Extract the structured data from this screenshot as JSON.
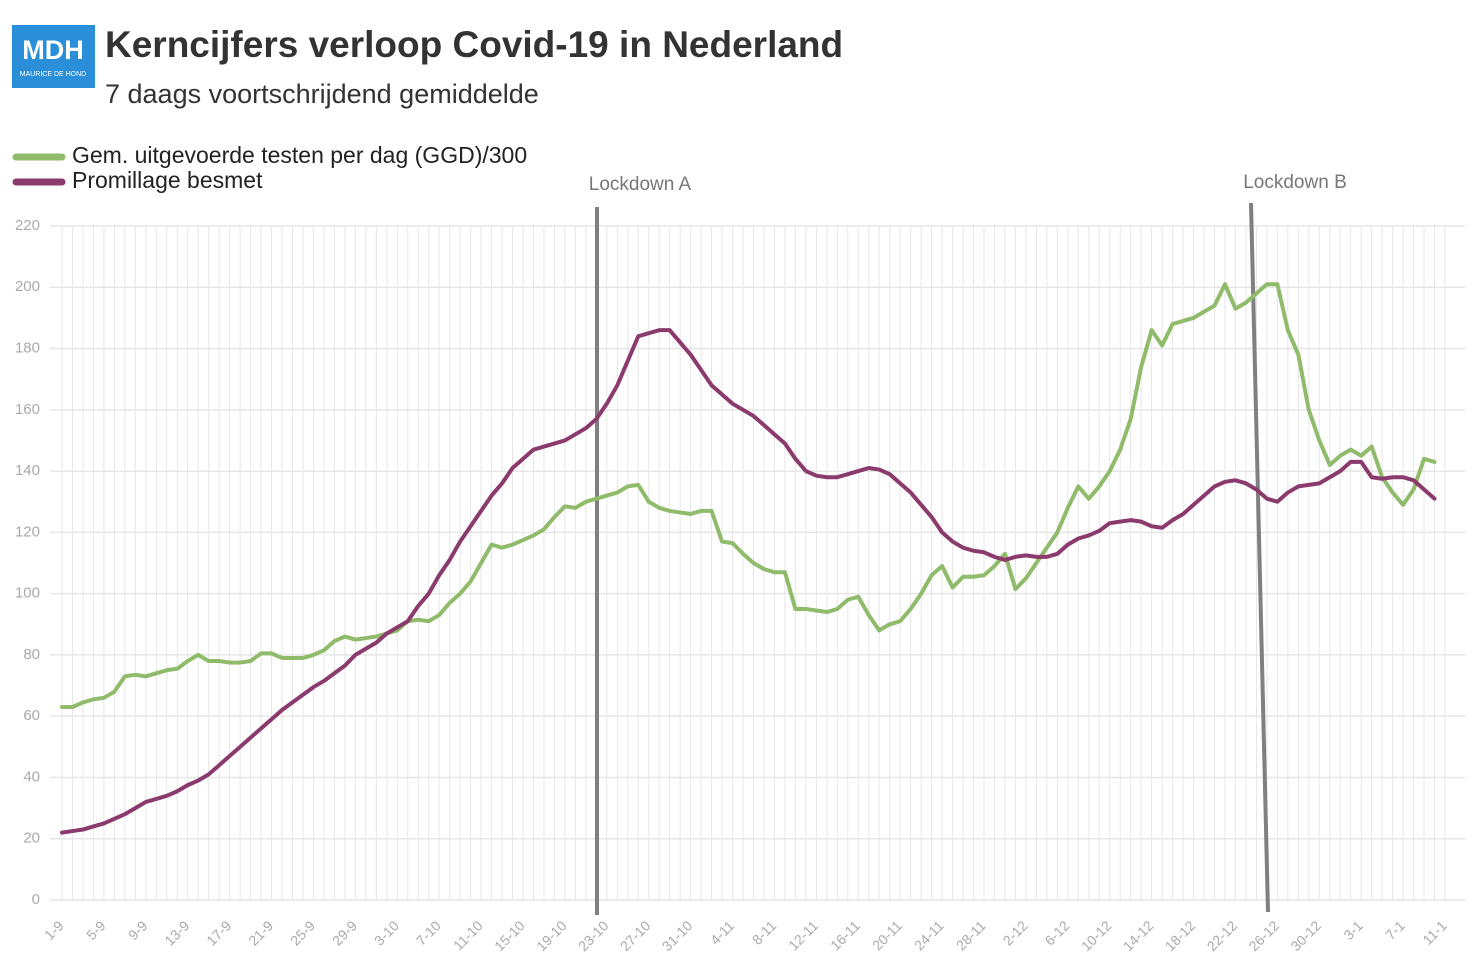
{
  "logo": {
    "text": "MDH",
    "subtext": "MAURICE DE HOND"
  },
  "chart_data": {
    "type": "line",
    "title": "Kerncijfers verloop Covid-19 in Nederland",
    "subtitle": "7 daags voortschrijdend gemiddelde",
    "annotations": [
      "Lockdown A",
      "Lockdown B"
    ],
    "categories": [
      "1-9",
      null,
      null,
      null,
      "5-9",
      null,
      null,
      null,
      "9-9",
      null,
      null,
      null,
      "13-9",
      null,
      null,
      null,
      "17-9",
      null,
      null,
      null,
      "21-9",
      null,
      null,
      null,
      "25-9",
      null,
      null,
      null,
      "29-9",
      null,
      null,
      null,
      "3-10",
      null,
      null,
      null,
      "7-10",
      null,
      null,
      null,
      "11-10",
      null,
      null,
      null,
      "15-10",
      null,
      null,
      null,
      "19-10",
      null,
      null,
      null,
      "23-10",
      null,
      null,
      null,
      "27-10",
      null,
      null,
      null,
      "31-10",
      null,
      null,
      null,
      "4-11",
      null,
      null,
      null,
      "8-11",
      null,
      null,
      null,
      "12-11",
      null,
      null,
      null,
      "16-11",
      null,
      null,
      null,
      "20-11",
      null,
      null,
      null,
      "24-11",
      null,
      null,
      null,
      "28-11",
      null,
      null,
      null,
      "2-12",
      null,
      null,
      null,
      "6-12",
      null,
      null,
      null,
      "10-12",
      null,
      null,
      null,
      "14-12",
      null,
      null,
      null,
      "18-12",
      null,
      null,
      null,
      "22-12",
      null,
      null,
      null,
      "26-12",
      null,
      null,
      null,
      "30-12",
      null,
      null,
      null,
      "3-1",
      null,
      null,
      null,
      "7-1",
      null,
      null,
      null,
      "11-1"
    ],
    "series": [
      {
        "name": "Gem. uitgevoerde testen per dag (GGD)/300",
        "color": "#8fbb6a",
        "values": [
          63,
          63,
          64.5,
          65.5,
          66,
          68,
          73,
          73.5,
          73,
          74,
          75,
          75.5,
          78,
          80,
          78,
          78,
          77.5,
          77.5,
          78,
          80.5,
          80.5,
          79,
          79,
          79,
          80,
          81.5,
          84.5,
          86,
          85,
          85.5,
          86,
          87,
          88,
          91,
          91.5,
          91,
          93,
          97,
          100,
          104,
          110,
          116,
          115,
          116,
          117.5,
          119,
          121,
          125,
          128.5,
          128,
          130,
          131,
          132,
          133,
          135,
          135.5,
          130,
          128,
          127,
          126.5,
          126,
          127,
          127,
          117,
          116.5,
          113,
          110,
          108,
          107,
          107,
          95,
          95,
          94.5,
          94,
          95,
          98,
          99,
          93,
          88,
          90,
          91,
          95,
          100,
          106,
          109,
          102,
          105.5,
          105.5,
          106,
          109,
          113,
          101.5,
          105,
          110,
          115,
          120,
          128,
          135,
          131,
          135,
          140,
          147,
          157,
          174,
          186,
          181,
          188,
          189,
          190,
          192,
          194,
          201,
          193,
          195,
          198,
          201,
          201,
          186,
          178,
          160,
          150,
          142,
          145,
          147,
          145,
          148,
          138,
          133,
          129,
          134,
          144,
          143,
          null
        ]
      },
      {
        "name": "Promillage besmet",
        "color": "#8b3a6e",
        "values": [
          22,
          22.5,
          23,
          24,
          25,
          26.5,
          28,
          30,
          32,
          33,
          34,
          35.5,
          37.5,
          39,
          41,
          44,
          47,
          50,
          53,
          56,
          59,
          62,
          64.5,
          67,
          69.5,
          71.5,
          74,
          76.5,
          80,
          82,
          84,
          87,
          89,
          91,
          96,
          100,
          106,
          111,
          117,
          122,
          127,
          132,
          136,
          141,
          144,
          147,
          148,
          149,
          150,
          152,
          154,
          157,
          162,
          168,
          176,
          184,
          185,
          186,
          186,
          182,
          178,
          173,
          168,
          165,
          162,
          160,
          158,
          155,
          152,
          149,
          144,
          140,
          138.5,
          138,
          138,
          139,
          140,
          141,
          140.5,
          139,
          136,
          133,
          129,
          125,
          120,
          117,
          115,
          114,
          113.5,
          112,
          111,
          112,
          112.5,
          112,
          112,
          113,
          116,
          118,
          119,
          120.5,
          123,
          123.5,
          124,
          123.5,
          122,
          121.5,
          124,
          126,
          129,
          132,
          135,
          136.5,
          137,
          136,
          134,
          131,
          130,
          133,
          135,
          135.5,
          136,
          138,
          140,
          143,
          143,
          138,
          137.5,
          138,
          138,
          137,
          134,
          131,
          null
        ]
      }
    ],
    "ylim": [
      0,
      220
    ],
    "yticks": [
      0,
      20,
      40,
      60,
      80,
      100,
      120,
      140,
      160,
      180,
      200,
      220
    ],
    "grid": true,
    "legend": "top-left"
  }
}
